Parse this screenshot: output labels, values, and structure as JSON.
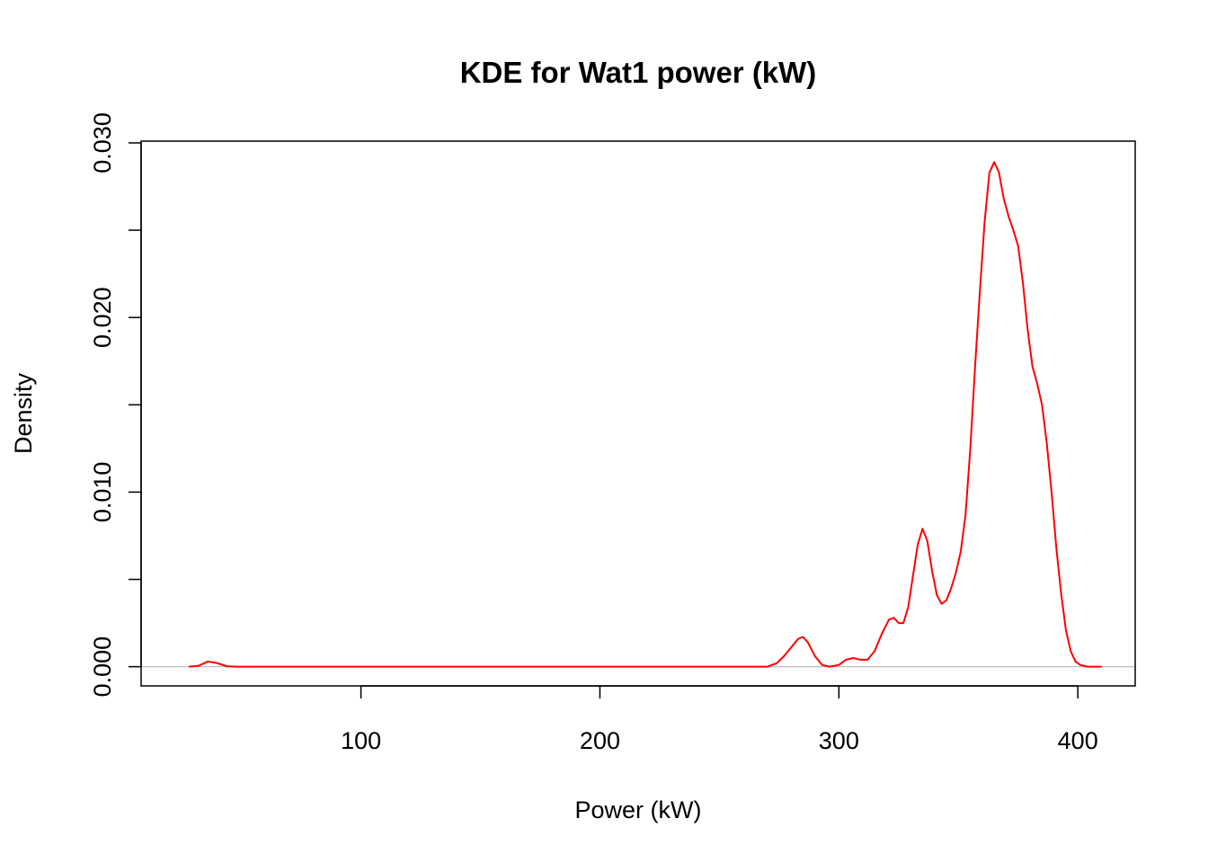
{
  "chart_data": {
    "type": "line",
    "title": "KDE for Wat1 power (kW)",
    "xlabel": "Power (kW)",
    "ylabel": "Density",
    "xlim": [
      8,
      424
    ],
    "ylim": [
      -0.0011,
      0.0301
    ],
    "x_ticks": [
      100,
      200,
      300,
      400
    ],
    "x_tick_labels": [
      "100",
      "200",
      "300",
      "400"
    ],
    "y_ticks": [
      0.0,
      0.005,
      0.01,
      0.015,
      0.02,
      0.025,
      0.03
    ],
    "y_tick_labels": [
      "0.000",
      "",
      "0.010",
      "",
      "0.020",
      "",
      "0.030"
    ],
    "grid": false,
    "baseline": {
      "y": 0,
      "color": "#bebebe"
    },
    "series": [
      {
        "color": "#ff0000",
        "x": [
          28,
          32,
          36,
          40,
          44,
          48,
          60,
          100,
          150,
          200,
          250,
          270,
          274,
          277,
          280,
          283,
          285,
          287,
          290,
          293,
          296,
          300,
          303,
          306,
          309,
          312,
          315,
          318,
          321,
          323,
          325,
          327,
          329,
          331,
          333,
          335,
          337,
          339,
          341,
          343,
          345,
          347,
          349,
          351,
          353,
          355,
          357,
          359,
          361,
          363,
          365,
          367,
          369,
          371,
          373,
          375,
          377,
          379,
          381,
          383,
          385,
          387,
          389,
          391,
          393,
          395,
          397,
          399,
          401,
          404,
          407,
          410
        ],
        "y": [
          0.0,
          5e-05,
          0.0003,
          0.0002,
          2e-05,
          0.0,
          0.0,
          0.0,
          0.0,
          0.0,
          0.0,
          0.0,
          0.0002,
          0.0006,
          0.0011,
          0.0016,
          0.0017,
          0.0014,
          0.0006,
          0.0001,
          0.0,
          0.0001,
          0.0004,
          0.0005,
          0.0004,
          0.0004,
          0.0009,
          0.0019,
          0.0027,
          0.0028,
          0.0025,
          0.0025,
          0.0034,
          0.0052,
          0.007,
          0.0079,
          0.0072,
          0.0055,
          0.0041,
          0.0036,
          0.0038,
          0.0045,
          0.0054,
          0.0066,
          0.0087,
          0.0125,
          0.0172,
          0.0215,
          0.0255,
          0.0283,
          0.0289,
          0.0283,
          0.0268,
          0.0258,
          0.025,
          0.0241,
          0.022,
          0.0193,
          0.0172,
          0.0162,
          0.015,
          0.0128,
          0.01,
          0.0068,
          0.0042,
          0.0021,
          0.0009,
          0.0003,
          0.0001,
          0.0,
          0.0,
          0.0
        ]
      }
    ]
  }
}
